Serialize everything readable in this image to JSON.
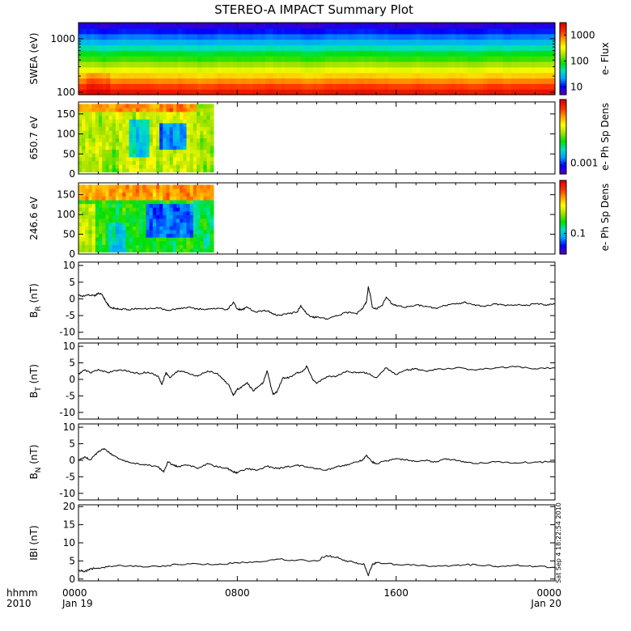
{
  "title": "STEREO-A IMPACT Summary Plot",
  "stamp": "Sat Sep  4 18:22:54 2010",
  "time_axis": {
    "row1_label": "hhmm",
    "row2_label": "2010",
    "ticks": [
      {
        "hour": 0,
        "time": "0000",
        "date": "Jan 19"
      },
      {
        "hour": 8,
        "time": "0800",
        "date": ""
      },
      {
        "hour": 16,
        "time": "1600",
        "date": ""
      },
      {
        "hour": 24,
        "time": "0000",
        "date": "Jan 20"
      }
    ],
    "range_hours": [
      0,
      24
    ]
  },
  "colors": {
    "rainbow": [
      "#5a00b4",
      "#0000ff",
      "#00a0ff",
      "#00e0c0",
      "#00e000",
      "#a0e000",
      "#ffff00",
      "#ffa000",
      "#ff3000",
      "#e00000"
    ]
  },
  "chart_data": [
    {
      "type": "heatmap",
      "panel": "swea",
      "ylabel": "SWEA (eV)",
      "yscale": "log",
      "ylim": [
        90,
        2000
      ],
      "yticks": [
        {
          "value": 100,
          "label": "100"
        },
        {
          "value": 1000,
          "label": "1000"
        }
      ],
      "colorbar": {
        "label": "e- Flux",
        "scale": "log",
        "range": [
          5,
          3000
        ],
        "ticks": [
          {
            "value": 10,
            "label": "10"
          },
          {
            "value": 100,
            "label": "100"
          },
          {
            "value": 1000,
            "label": "1000"
          }
        ]
      },
      "data_hours": [
        0,
        24
      ],
      "rows_bottom_to_top": [
        0.95,
        0.88,
        0.8,
        0.72,
        0.64,
        0.56,
        0.48,
        0.42,
        0.34,
        0.26,
        0.19,
        0.12,
        0.06
      ],
      "enhancement": [
        {
          "from_hour": 0.5,
          "to_hour": 1.5,
          "delta": 0.06
        }
      ]
    },
    {
      "type": "heatmap",
      "panel": "pad1",
      "ylabel": "650.7 eV",
      "ylim": [
        0,
        180
      ],
      "yticks": [
        {
          "value": 0,
          "label": "0"
        },
        {
          "value": 50,
          "label": "50"
        },
        {
          "value": 100,
          "label": "100"
        },
        {
          "value": 150,
          "label": "150"
        }
      ],
      "colorbar": {
        "label": "e- Ph Sp Dens",
        "scale": "log",
        "range": [
          0.0006,
          0.02
        ],
        "ticks": [
          {
            "value": 0.001,
            "label": "0.001"
          }
        ]
      },
      "data_hours": [
        0,
        6.8
      ]
    },
    {
      "type": "heatmap",
      "panel": "pad2",
      "ylabel": "246.6 eV",
      "ylim": [
        0,
        180
      ],
      "yticks": [
        {
          "value": 0,
          "label": "0"
        },
        {
          "value": 50,
          "label": "50"
        },
        {
          "value": 100,
          "label": "100"
        },
        {
          "value": 150,
          "label": "150"
        }
      ],
      "colorbar": {
        "label": "e- Ph Sp Dens",
        "scale": "log",
        "range": [
          0.05,
          0.6
        ],
        "ticks": [
          {
            "value": 0.1,
            "label": "0.1"
          }
        ]
      },
      "data_hours": [
        0,
        6.8
      ]
    },
    {
      "type": "line",
      "panel": "br",
      "ylabel": "B",
      "ylabel_sub": "R",
      "ylabel_unit": " (nT)",
      "ylim": [
        -12,
        11
      ],
      "yticks": [
        {
          "value": -10,
          "label": "-10"
        },
        {
          "value": -5,
          "label": "-5"
        },
        {
          "value": 0,
          "label": "0"
        },
        {
          "value": 5,
          "label": "5"
        },
        {
          "value": 10,
          "label": "10"
        }
      ],
      "x": [
        0,
        0.3,
        0.5,
        0.8,
        1.0,
        1.2,
        1.4,
        1.6,
        1.8,
        2.0,
        2.5,
        3.0,
        3.5,
        4.0,
        4.5,
        5.0,
        5.5,
        6.0,
        6.5,
        7.0,
        7.5,
        7.8,
        8.0,
        8.2,
        8.5,
        8.8,
        9.0,
        9.3,
        9.6,
        10.0,
        10.5,
        11.0,
        11.2,
        11.5,
        11.8,
        12.0,
        12.5,
        13.0,
        13.5,
        14.0,
        14.3,
        14.5,
        14.6,
        14.7,
        14.8,
        15.0,
        15.3,
        15.5,
        15.8,
        16.0,
        16.5,
        17.0,
        17.5,
        18.0,
        18.5,
        19.0,
        19.5,
        20.0,
        20.5,
        21.0,
        21.5,
        22.0,
        22.5,
        23.0,
        23.5,
        24.0
      ],
      "values": [
        1.0,
        0.8,
        1.3,
        0.9,
        1.8,
        1.2,
        -1.0,
        -2.5,
        -2.8,
        -3.0,
        -3.2,
        -2.9,
        -3.0,
        -2.7,
        -3.4,
        -3.0,
        -2.5,
        -3.0,
        -3.1,
        -2.8,
        -3.2,
        -1.0,
        -3.0,
        -3.3,
        -2.5,
        -3.6,
        -4.0,
        -3.5,
        -3.8,
        -5.0,
        -4.5,
        -4.0,
        -2.0,
        -4.5,
        -5.5,
        -5.5,
        -6.0,
        -5.0,
        -4.0,
        -4.5,
        -3.0,
        -1.0,
        3.5,
        1.0,
        -2.5,
        -3.0,
        -2.0,
        0.5,
        -1.5,
        -2.0,
        -2.5,
        -1.8,
        -2.2,
        -2.8,
        -2.0,
        -1.5,
        -1.0,
        -2.0,
        -2.2,
        -1.5,
        -2.0,
        -1.8,
        -2.0,
        -1.5,
        -1.8,
        -1.6
      ]
    },
    {
      "type": "line",
      "panel": "bt",
      "ylabel": "B",
      "ylabel_sub": "T",
      "ylabel_unit": " (nT)",
      "ylim": [
        -12,
        11
      ],
      "yticks": [
        {
          "value": -10,
          "label": "-10"
        },
        {
          "value": -5,
          "label": "-5"
        },
        {
          "value": 0,
          "label": "0"
        },
        {
          "value": 5,
          "label": "5"
        },
        {
          "value": 10,
          "label": "10"
        }
      ],
      "x": [
        0,
        0.3,
        0.6,
        1.0,
        1.5,
        2.0,
        2.5,
        3.0,
        3.5,
        4.0,
        4.2,
        4.4,
        4.6,
        5.0,
        5.5,
        6.0,
        6.5,
        7.0,
        7.3,
        7.6,
        7.8,
        8.0,
        8.2,
        8.5,
        8.8,
        9.0,
        9.3,
        9.5,
        9.8,
        10.0,
        10.3,
        10.6,
        11.0,
        11.3,
        11.5,
        11.8,
        12.0,
        12.5,
        13.0,
        13.5,
        14.0,
        14.5,
        15.0,
        15.5,
        16.0,
        16.5,
        17.0,
        17.5,
        18.0,
        19.0,
        20.0,
        21.0,
        22.0,
        23.0,
        24.0
      ],
      "values": [
        1.5,
        2.8,
        2.0,
        3.0,
        2.0,
        2.8,
        2.5,
        1.8,
        2.2,
        1.0,
        -1.5,
        2.0,
        0.5,
        2.5,
        2.0,
        1.0,
        2.5,
        1.8,
        0.0,
        -2.0,
        -4.8,
        -3.0,
        -2.5,
        -1.0,
        -3.5,
        -2.5,
        -1.0,
        2.5,
        -4.5,
        -3.8,
        0.5,
        0.5,
        2.0,
        2.5,
        4.0,
        0.0,
        -1.2,
        0.8,
        1.0,
        2.5,
        2.0,
        2.0,
        0.5,
        3.5,
        1.5,
        2.8,
        3.2,
        2.5,
        3.0,
        3.5,
        2.8,
        3.5,
        3.8,
        3.2,
        3.5
      ]
    },
    {
      "type": "line",
      "panel": "bn",
      "ylabel": "B",
      "ylabel_sub": "N",
      "ylabel_unit": " (nT)",
      "ylim": [
        -12,
        11
      ],
      "yticks": [
        {
          "value": -10,
          "label": "-10"
        },
        {
          "value": -5,
          "label": "-5"
        },
        {
          "value": 0,
          "label": "0"
        },
        {
          "value": 5,
          "label": "5"
        },
        {
          "value": 10,
          "label": "10"
        }
      ],
      "x": [
        0,
        0.3,
        0.6,
        1.0,
        1.3,
        1.6,
        2.0,
        2.5,
        3.0,
        3.5,
        4.0,
        4.3,
        4.5,
        4.8,
        5.0,
        5.5,
        6.0,
        6.5,
        7.0,
        7.5,
        7.8,
        8.0,
        8.5,
        9.0,
        9.5,
        10.0,
        10.5,
        11.0,
        11.5,
        12.0,
        12.5,
        13.0,
        13.5,
        14.0,
        14.3,
        14.5,
        14.8,
        15.0,
        15.5,
        16.0,
        16.5,
        17.0,
        17.5,
        18.0,
        18.5,
        19.0,
        19.5,
        20.0,
        21.0,
        22.0,
        23.0,
        24.0
      ],
      "values": [
        0.0,
        1.0,
        0.2,
        2.5,
        3.5,
        2.0,
        0.5,
        -0.5,
        -1.0,
        -1.5,
        -2.0,
        -3.5,
        -0.5,
        -1.5,
        -2.0,
        -1.5,
        -2.5,
        -1.0,
        -2.0,
        -2.5,
        -3.5,
        -3.8,
        -2.5,
        -3.0,
        -1.8,
        -2.5,
        -2.0,
        -1.5,
        -2.0,
        -2.5,
        -3.0,
        -2.0,
        -1.5,
        -0.5,
        0.0,
        1.5,
        -0.5,
        -1.0,
        -0.2,
        0.5,
        0.2,
        -0.3,
        0.0,
        -0.5,
        0.5,
        0.0,
        -0.5,
        -1.0,
        -0.5,
        -0.8,
        -0.5,
        -0.5
      ]
    },
    {
      "type": "line",
      "panel": "bmag",
      "ylabel": "IBI (nT)",
      "ylim": [
        -0.5,
        20.5
      ],
      "yticks": [
        {
          "value": 0,
          "label": "0"
        },
        {
          "value": 5,
          "label": "5"
        },
        {
          "value": 10,
          "label": "10"
        },
        {
          "value": 15,
          "label": "15"
        },
        {
          "value": 20,
          "label": "20"
        }
      ],
      "x": [
        0,
        0.3,
        0.6,
        1.0,
        1.5,
        2.0,
        3.0,
        4.0,
        5.0,
        6.0,
        7.0,
        8.0,
        9.0,
        10.0,
        11.0,
        12.0,
        12.5,
        13.0,
        13.5,
        14.0,
        14.4,
        14.6,
        14.8,
        15.0,
        16.0,
        17.0,
        18.0,
        19.0,
        20.0,
        21.0,
        22.0,
        23.0,
        24.0
      ],
      "values": [
        2.5,
        2.0,
        2.8,
        3.0,
        3.5,
        3.8,
        3.5,
        3.5,
        4.0,
        4.2,
        4.0,
        4.5,
        4.8,
        5.5,
        5.2,
        5.0,
        6.5,
        6.0,
        5.0,
        4.5,
        4.0,
        1.0,
        4.0,
        4.5,
        4.0,
        3.8,
        3.5,
        3.8,
        4.0,
        3.5,
        3.8,
        3.5,
        3.2
      ]
    }
  ]
}
